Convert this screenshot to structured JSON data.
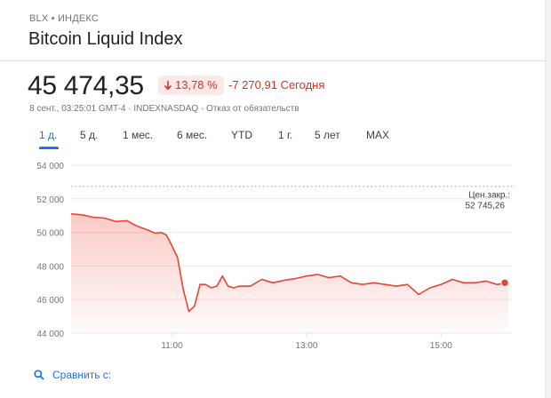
{
  "header": {
    "ticker": "BLX • ИНДЕКС",
    "name": "Bitcoin Liquid Index"
  },
  "quote": {
    "price": "45 474,35",
    "change_percent": "13,78 %",
    "change_value": "-7 270,91",
    "change_period": "Сегодня",
    "meta": "8 сент., 03:25:01 GMT-4 · INDEXNASDAQ · Отказ от обязательств"
  },
  "tabs": [
    {
      "label": "1 д.",
      "active": true
    },
    {
      "label": "5 д."
    },
    {
      "label": "1 мес."
    },
    {
      "label": "6 мес."
    },
    {
      "label": "YTD"
    },
    {
      "label": "1 г."
    },
    {
      "label": "5 лет"
    },
    {
      "label": "MAX"
    }
  ],
  "compare": {
    "label": "Сравнить с:"
  },
  "colors": {
    "line": "#ea4335",
    "negative": "#d93025",
    "accent": "#1a73e8"
  },
  "chart_data": {
    "type": "area",
    "x_time_range": [
      "09:30",
      "16:00"
    ],
    "ylim": [
      44000,
      54000
    ],
    "y_ticks": [
      44000,
      46000,
      48000,
      50000,
      52000,
      54000
    ],
    "y_tick_labels": [
      "44 000",
      "46 000",
      "48 000",
      "50 000",
      "52 000",
      "54 000"
    ],
    "x_ticks": [
      "11:00",
      "13:00",
      "15:00"
    ],
    "previous_close": {
      "label": "Цен.закр.:",
      "value": 52745.26,
      "value_label": "52 745,26"
    },
    "grid": true,
    "series": [
      {
        "x": [
          "09:30",
          "09:40",
          "09:50",
          "10:00",
          "10:10",
          "10:20",
          "10:25",
          "10:30",
          "10:40",
          "10:45",
          "10:50",
          "10:55",
          "11:00",
          "11:05",
          "11:10",
          "11:15",
          "11:20",
          "11:25",
          "11:30",
          "11:35",
          "11:40",
          "11:45",
          "11:50",
          "11:55",
          "12:00",
          "12:10",
          "12:20",
          "12:30",
          "12:40",
          "12:50",
          "13:00",
          "13:10",
          "13:20",
          "13:30",
          "13:40",
          "13:50",
          "14:00",
          "14:10",
          "14:20",
          "14:30",
          "14:40",
          "14:50",
          "15:00",
          "15:10",
          "15:20",
          "15:30",
          "15:40",
          "15:50",
          "16:00"
        ],
        "values": [
          51100,
          51050,
          50900,
          50850,
          50650,
          50700,
          50500,
          50350,
          50100,
          49950,
          50000,
          49850,
          49200,
          48500,
          46600,
          45300,
          45600,
          46900,
          46900,
          46700,
          46800,
          47400,
          46800,
          46700,
          46800,
          46800,
          47200,
          47000,
          47150,
          47250,
          47400,
          47500,
          47300,
          47400,
          47000,
          46900,
          47000,
          46900,
          46800,
          46900,
          46300,
          46700,
          46900,
          47200,
          47000,
          47000,
          47100,
          46900,
          47000
        ]
      }
    ]
  }
}
